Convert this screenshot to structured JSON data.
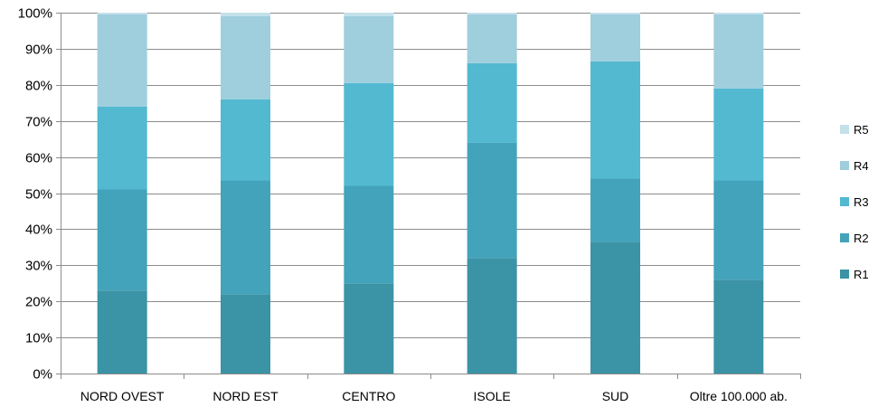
{
  "chart_data": {
    "type": "bar",
    "stacked": true,
    "percent_stacked": true,
    "categories": [
      "NORD OVEST",
      "NORD EST",
      "CENTRO",
      "ISOLE",
      "SUD",
      "Oltre 100.000 ab."
    ],
    "series": [
      {
        "name": "R1",
        "color": "#3b93a6",
        "values": [
          23,
          22,
          25,
          32,
          36.5,
          26
        ]
      },
      {
        "name": "R2",
        "color": "#43a3ba",
        "values": [
          28,
          31.5,
          27,
          32,
          17.5,
          27.5
        ]
      },
      {
        "name": "R3",
        "color": "#52b9d0",
        "values": [
          23,
          22.5,
          28.5,
          22,
          32.5,
          25.5
        ]
      },
      {
        "name": "R4",
        "color": "#9fcedd",
        "values": [
          25.5,
          23,
          18.5,
          13.5,
          13,
          20.5
        ]
      },
      {
        "name": "R5",
        "color": "#c4e1ea",
        "values": [
          0.5,
          1,
          1,
          0.5,
          0.5,
          0.5
        ]
      }
    ],
    "y_ticks": [
      "0%",
      "10%",
      "20%",
      "30%",
      "40%",
      "50%",
      "60%",
      "70%",
      "80%",
      "90%",
      "100%"
    ],
    "ylim": [
      0,
      100
    ],
    "grid": true,
    "legend_position": "right",
    "legend_order": [
      "R5",
      "R4",
      "R3",
      "R2",
      "R1"
    ]
  }
}
